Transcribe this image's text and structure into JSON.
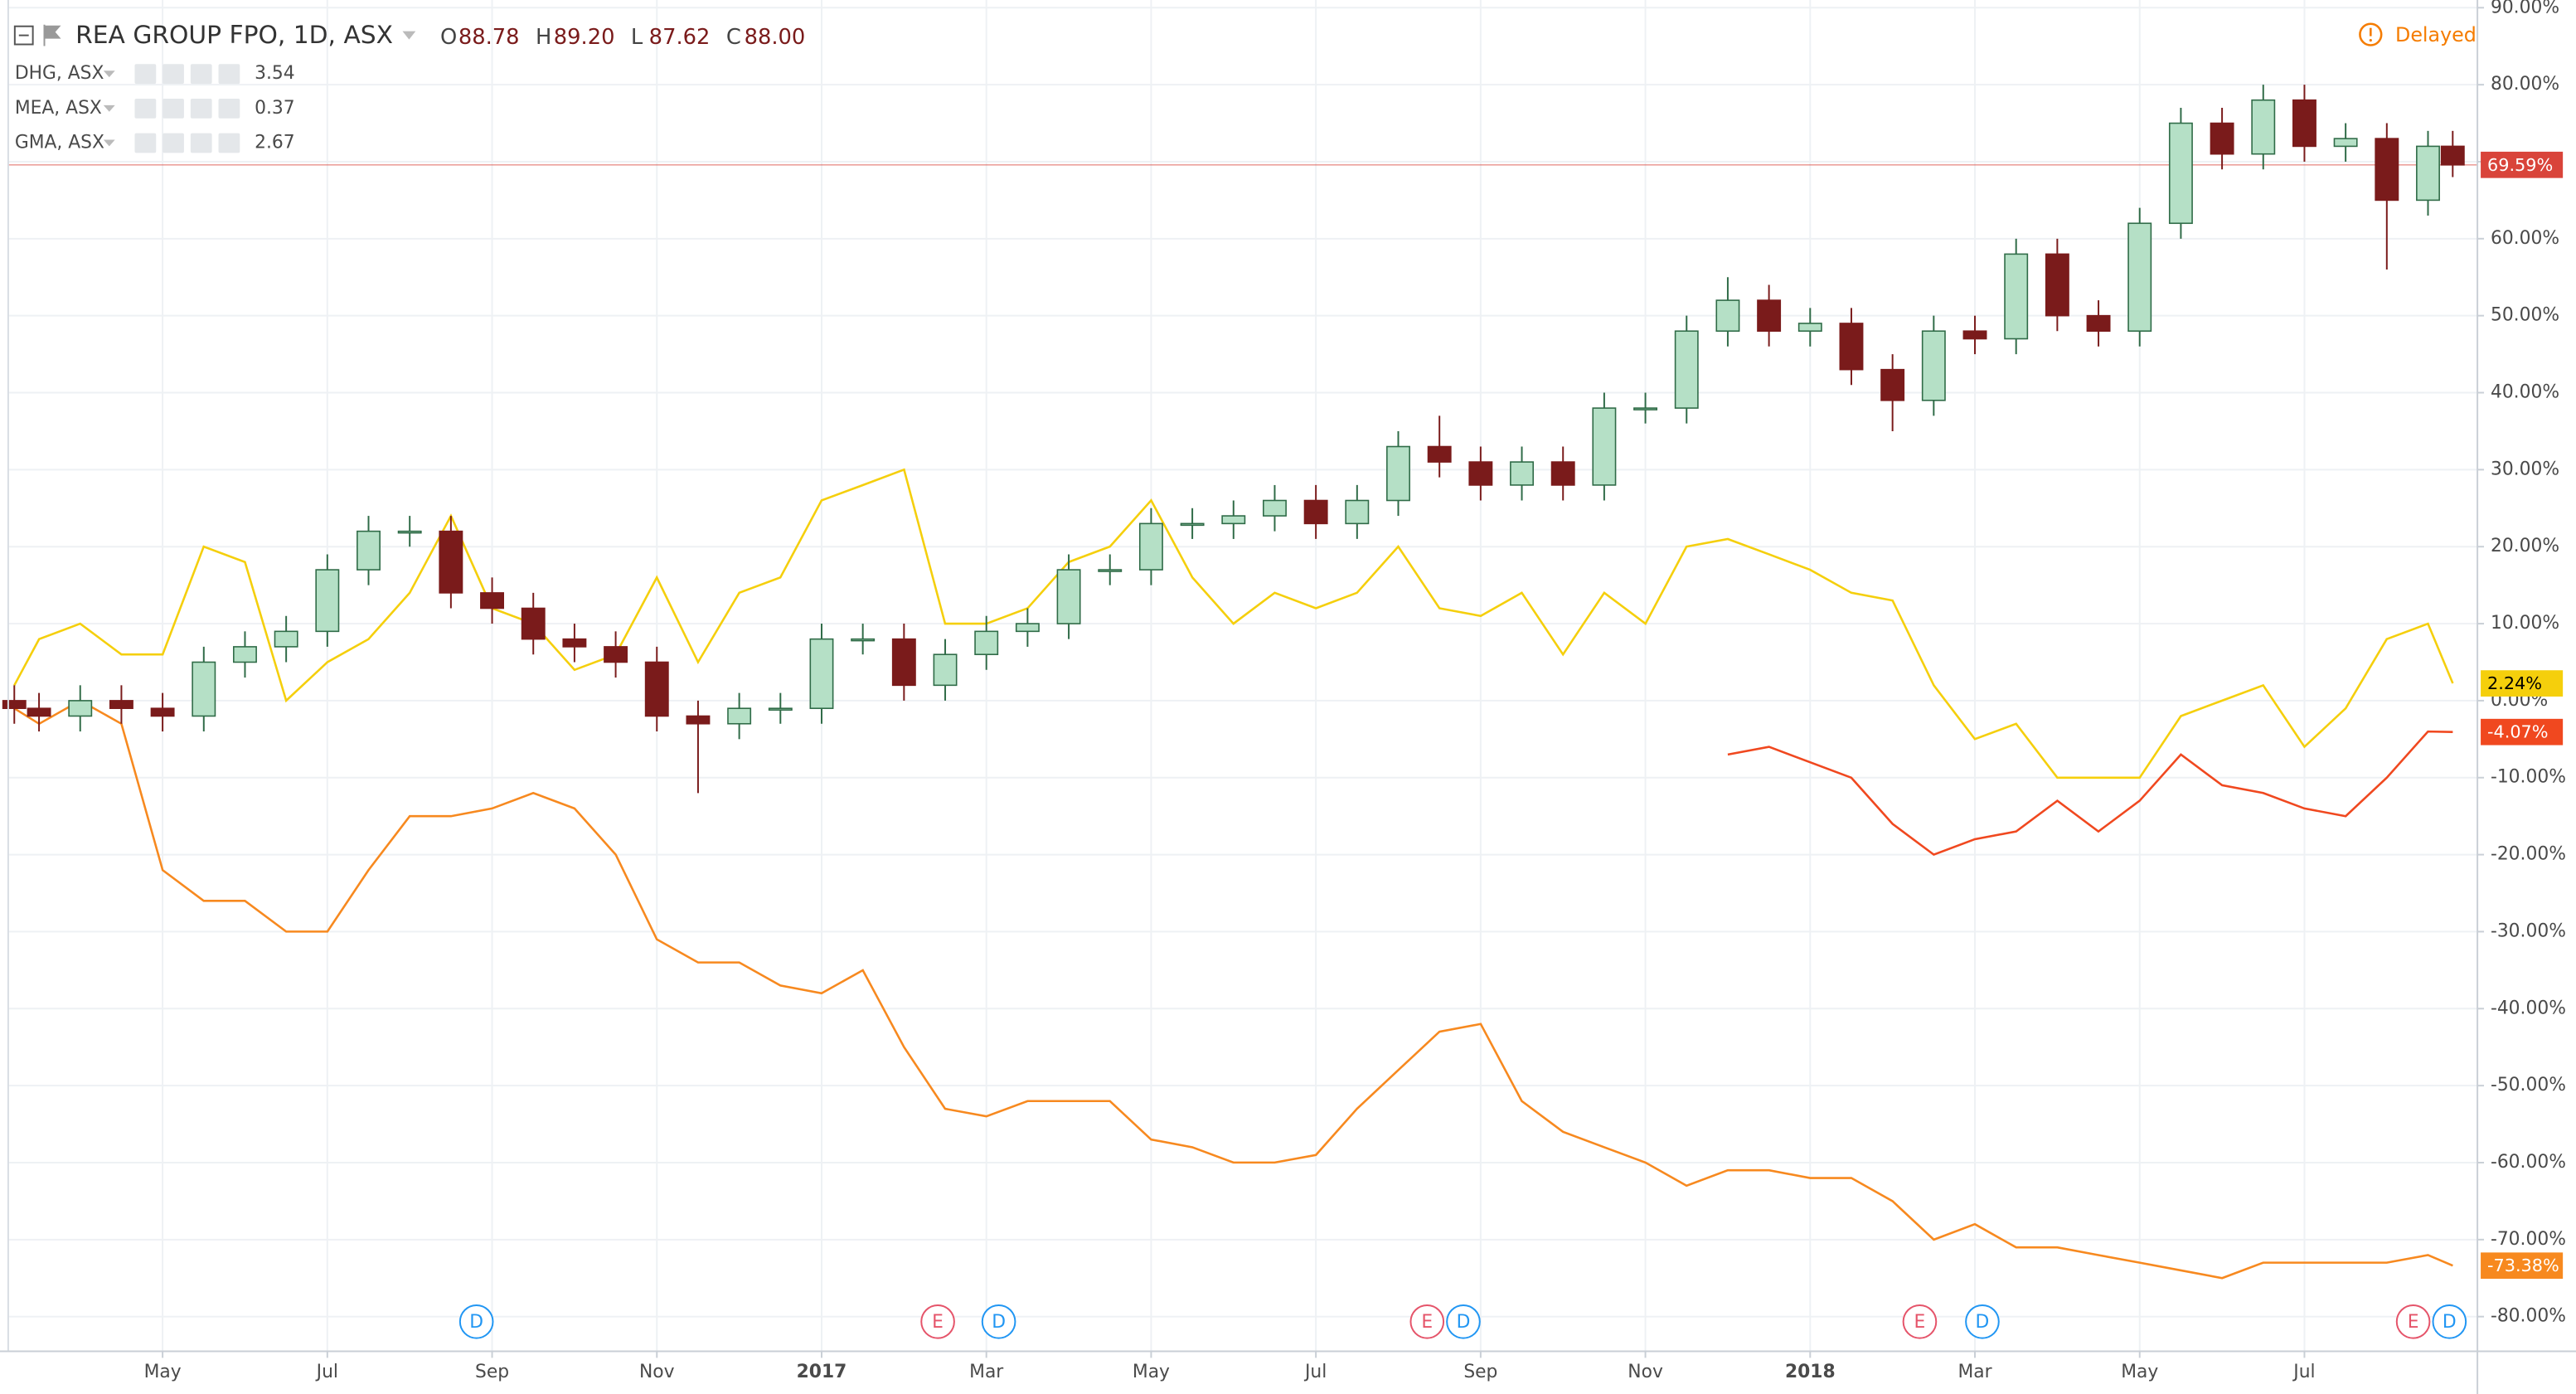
{
  "chart_data": {
    "type": "candlestick",
    "title": "REA GROUP FPO, 1D, ASX",
    "ohlc": [
      {
        "label": "O",
        "value": "88.78"
      },
      {
        "label": "H",
        "value": "89.20"
      },
      {
        "label": "L",
        "value": "87.62"
      },
      {
        "label": "C",
        "value": "88.00"
      }
    ],
    "status": "Delayed",
    "xlim": [
      2.126,
      32.1
    ],
    "xticks": [
      {
        "value": 4,
        "label": "May"
      },
      {
        "value": 6,
        "label": "Jul"
      },
      {
        "value": 8,
        "label": "Sep"
      },
      {
        "value": 10,
        "label": "Nov"
      },
      {
        "value": 12,
        "label": "2017"
      },
      {
        "value": 14,
        "label": "Mar"
      },
      {
        "value": 16,
        "label": "May"
      },
      {
        "value": 18,
        "label": "Jul"
      },
      {
        "value": 20,
        "label": "Sep"
      },
      {
        "value": 22,
        "label": "Nov"
      },
      {
        "value": 24,
        "label": "2018"
      },
      {
        "value": 26,
        "label": "Mar"
      },
      {
        "value": 28,
        "label": "May"
      },
      {
        "value": 30,
        "label": "Jul"
      }
    ],
    "ylim": [
      -84.5,
      91
    ],
    "yticks": [
      {
        "value": 90,
        "label": "90.00%"
      },
      {
        "value": 80,
        "label": "80.00%"
      },
      {
        "value": 70,
        "label": "70.00%"
      },
      {
        "value": 60,
        "label": "60.00%"
      },
      {
        "value": 50,
        "label": "50.00%"
      },
      {
        "value": 40,
        "label": "40.00%"
      },
      {
        "value": 30,
        "label": "30.00%"
      },
      {
        "value": 20,
        "label": "20.00%"
      },
      {
        "value": 10,
        "label": "10.00%"
      },
      {
        "value": 0,
        "label": "0.00%"
      },
      {
        "value": -10,
        "label": "-10.00%"
      },
      {
        "value": -20,
        "label": "-20.00%"
      },
      {
        "value": -30,
        "label": "-30.00%"
      },
      {
        "value": -40,
        "label": "-40.00%"
      },
      {
        "value": -50,
        "label": "-50.00%"
      },
      {
        "value": -60,
        "label": "-60.00%"
      },
      {
        "value": -70,
        "label": "-70.00%"
      },
      {
        "value": -80,
        "label": "-80.00%"
      }
    ],
    "grid": true,
    "x": [
      2.2,
      2.5,
      3,
      3.5,
      4,
      4.5,
      5,
      5.5,
      6,
      6.5,
      7,
      7.5,
      8,
      8.5,
      9,
      9.5,
      10,
      10.5,
      11,
      11.5,
      12,
      12.5,
      13,
      13.5,
      14,
      14.5,
      15,
      15.5,
      16,
      16.5,
      17,
      17.5,
      18,
      18.5,
      19,
      19.5,
      20,
      20.5,
      21,
      21.5,
      22,
      22.5,
      23,
      23.5,
      24,
      24.5,
      25,
      25.5,
      26,
      26.5,
      27,
      27.5,
      28,
      28.5,
      29,
      29.5,
      30,
      30.5,
      31,
      31.5,
      31.8
    ],
    "candles": {
      "color": "#d9443a",
      "up_color": "#b5e0c6",
      "up_stroke": "#2f6b47",
      "down_color": "#7a1b1b",
      "open": [
        0,
        -1,
        -2,
        0,
        -1,
        -2,
        5,
        7,
        9,
        17,
        22,
        22,
        14,
        12,
        8,
        7,
        5,
        -2,
        -3,
        -1,
        -1,
        8,
        8,
        2,
        6,
        9,
        10,
        17,
        17,
        23,
        23,
        24,
        26,
        23,
        26,
        33,
        31,
        28,
        31,
        28,
        38,
        38,
        48,
        52,
        48,
        49,
        43,
        39,
        48,
        47,
        58,
        50,
        48,
        62,
        75,
        71,
        78,
        72,
        73,
        65,
        72
      ],
      "high": [
        2,
        1,
        2,
        2,
        1,
        7,
        9,
        11,
        19,
        24,
        24,
        24,
        16,
        14,
        10,
        9,
        7,
        0,
        1,
        1,
        10,
        10,
        10,
        8,
        11,
        12,
        19,
        19,
        25,
        25,
        26,
        28,
        28,
        28,
        35,
        37,
        33,
        33,
        33,
        40,
        40,
        50,
        55,
        54,
        51,
        51,
        45,
        50,
        50,
        60,
        60,
        52,
        64,
        77,
        77,
        80,
        80,
        75,
        75,
        74,
        74
      ],
      "low": [
        -3,
        -4,
        -4,
        -3,
        -4,
        -4,
        3,
        5,
        7,
        15,
        20,
        12,
        10,
        6,
        5,
        3,
        -4,
        -12,
        -5,
        -3,
        -3,
        6,
        0,
        0,
        4,
        7,
        8,
        15,
        15,
        21,
        21,
        22,
        21,
        21,
        24,
        29,
        26,
        26,
        26,
        26,
        36,
        36,
        46,
        46,
        46,
        41,
        35,
        37,
        45,
        45,
        48,
        46,
        46,
        60,
        69,
        69,
        70,
        70,
        56,
        63,
        68
      ],
      "close": [
        -1,
        -2,
        0,
        -1,
        -2,
        5,
        7,
        9,
        17,
        22,
        22,
        14,
        12,
        8,
        7,
        5,
        -2,
        -3,
        -1,
        -1,
        8,
        8,
        2,
        6,
        9,
        10,
        17,
        17,
        23,
        23,
        24,
        26,
        23,
        26,
        33,
        31,
        28,
        31,
        28,
        38,
        38,
        48,
        52,
        48,
        49,
        43,
        39,
        48,
        47,
        58,
        50,
        48,
        62,
        75,
        71,
        78,
        72,
        73,
        65,
        72,
        69.59
      ],
      "last": {
        "value": 69.59,
        "label": "69.59%"
      }
    },
    "series": [
      {
        "name": "DHG, ASX",
        "price": 3.54,
        "color": "#f0481f",
        "text_color": "#ffffff",
        "values": [
          null,
          null,
          null,
          null,
          null,
          null,
          null,
          null,
          null,
          null,
          null,
          null,
          null,
          null,
          null,
          null,
          null,
          null,
          null,
          null,
          null,
          null,
          null,
          null,
          null,
          null,
          null,
          null,
          null,
          null,
          null,
          null,
          null,
          null,
          null,
          null,
          null,
          null,
          null,
          null,
          null,
          null,
          -7,
          -6,
          -8,
          -10,
          -16,
          -20,
          -18,
          -17,
          -13,
          -17,
          -13,
          -7,
          -11,
          -12,
          -14,
          -15,
          -10,
          -4,
          -4.07
        ],
        "last": {
          "value": -4.07,
          "label": "-4.07%"
        }
      },
      {
        "name": "MEA, ASX",
        "price": 0.37,
        "color": "#f7891f",
        "text_color": "#ffffff",
        "values": [
          -1,
          -3,
          0,
          -3,
          -22,
          -26,
          -26,
          -30,
          -30,
          -22,
          -15,
          -15,
          -14,
          -12,
          -14,
          -20,
          -31,
          -34,
          -34,
          -37,
          -38,
          -35,
          -45,
          -53,
          -54,
          -52,
          -52,
          -52,
          -57,
          -58,
          -60,
          -60,
          -59,
          -53,
          -48,
          -43,
          -42,
          -52,
          -56,
          -58,
          -60,
          -63,
          -61,
          -61,
          -62,
          -62,
          -65,
          -70,
          -68,
          -71,
          -71,
          -72,
          -73,
          -74,
          -75,
          -73,
          -73,
          -73,
          -73,
          -72,
          -73.38
        ],
        "last": {
          "value": -73.38,
          "label": "-73.38%"
        }
      },
      {
        "name": "GMA, ASX",
        "price": 2.67,
        "color": "#f5cf0c",
        "text_color": "#000000",
        "values": [
          2,
          8,
          10,
          6,
          6,
          20,
          18,
          0,
          5,
          8,
          14,
          24,
          12,
          10,
          4,
          6,
          16,
          5,
          14,
          16,
          26,
          28,
          30,
          10,
          10,
          12,
          18,
          20,
          26,
          16,
          10,
          14,
          12,
          14,
          20,
          12,
          11,
          14,
          6,
          14,
          10,
          20,
          21,
          19,
          17,
          14,
          13,
          2,
          -5,
          -3,
          -10,
          -10,
          -10,
          -2,
          0,
          2,
          -6,
          -1,
          8,
          10,
          2.24
        ],
        "last": {
          "value": 2.24,
          "label": "2.24%"
        }
      }
    ],
    "event_colors": {
      "D": "#2196f3",
      "E": "#e5546a"
    },
    "events": [
      {
        "x": 7.81,
        "label": "D"
      },
      {
        "x": 13.41,
        "label": "E"
      },
      {
        "x": 14.15,
        "label": "D"
      },
      {
        "x": 19.35,
        "label": "E"
      },
      {
        "x": 19.79,
        "label": "D"
      },
      {
        "x": 25.33,
        "label": "E"
      },
      {
        "x": 26.09,
        "label": "D"
      },
      {
        "x": 31.32,
        "label": "E"
      },
      {
        "x": 31.76,
        "label": "D"
      }
    ]
  }
}
